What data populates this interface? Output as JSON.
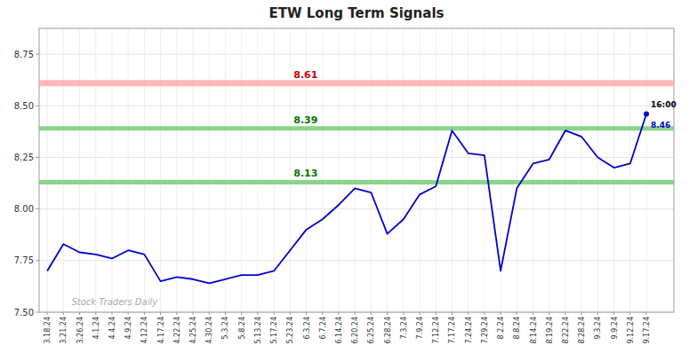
{
  "chart_data": {
    "type": "line",
    "title": "ETW Long Term Signals",
    "watermark": "Stock Traders Daily",
    "color": "#0000cc",
    "categories": [
      "3.18.24",
      "3.21.24",
      "3.26.24",
      "4.1.24",
      "4.4.24",
      "4.9.24",
      "4.12.24",
      "4.17.24",
      "4.22.24",
      "4.25.24",
      "4.30.24",
      "5.3.24",
      "5.8.24",
      "5.13.24",
      "5.17.24",
      "5.23.24",
      "6.3.24",
      "6.7.24",
      "6.14.24",
      "6.20.24",
      "6.25.24",
      "6.28.24",
      "7.3.24",
      "7.9.24",
      "7.12.24",
      "7.17.24",
      "7.24.24",
      "7.29.24",
      "8.2.24",
      "8.8.24",
      "8.14.24",
      "8.19.24",
      "8.22.24",
      "8.28.24",
      "9.3.24",
      "9.9.24",
      "9.12.24",
      "9.17.24"
    ],
    "values": [
      7.7,
      7.83,
      7.79,
      7.78,
      7.76,
      7.8,
      7.78,
      7.65,
      7.67,
      7.66,
      7.64,
      7.66,
      7.68,
      7.68,
      7.7,
      7.8,
      7.9,
      7.95,
      8.02,
      8.1,
      8.08,
      7.88,
      7.95,
      8.07,
      8.11,
      8.38,
      8.27,
      8.26,
      7.7,
      8.1,
      8.22,
      8.24,
      8.38,
      8.35,
      8.25,
      8.2,
      8.22,
      8.46
    ],
    "reference_lines": [
      {
        "value": 8.61,
        "label": "8.61",
        "color": "#ffaaaa",
        "label_color": "#cc0000"
      },
      {
        "value": 8.39,
        "label": "8.39",
        "color": "#77cc77",
        "label_color": "#007700"
      },
      {
        "value": 8.13,
        "label": "8.13",
        "color": "#77cc77",
        "label_color": "#007700"
      }
    ],
    "annotations": [
      {
        "text": "16:00"
      },
      {
        "text": "8.46"
      }
    ],
    "ylim": [
      7.5,
      8.875
    ],
    "yticks": [
      {
        "value": 7.5,
        "label": "7.50"
      },
      {
        "value": 7.75,
        "label": "7.75"
      },
      {
        "value": 8.0,
        "label": "8.00"
      },
      {
        "value": 8.25,
        "label": "8.25"
      },
      {
        "value": 8.5,
        "label": "8.50"
      },
      {
        "value": 8.75,
        "label": "8.75"
      }
    ],
    "grid": true
  }
}
